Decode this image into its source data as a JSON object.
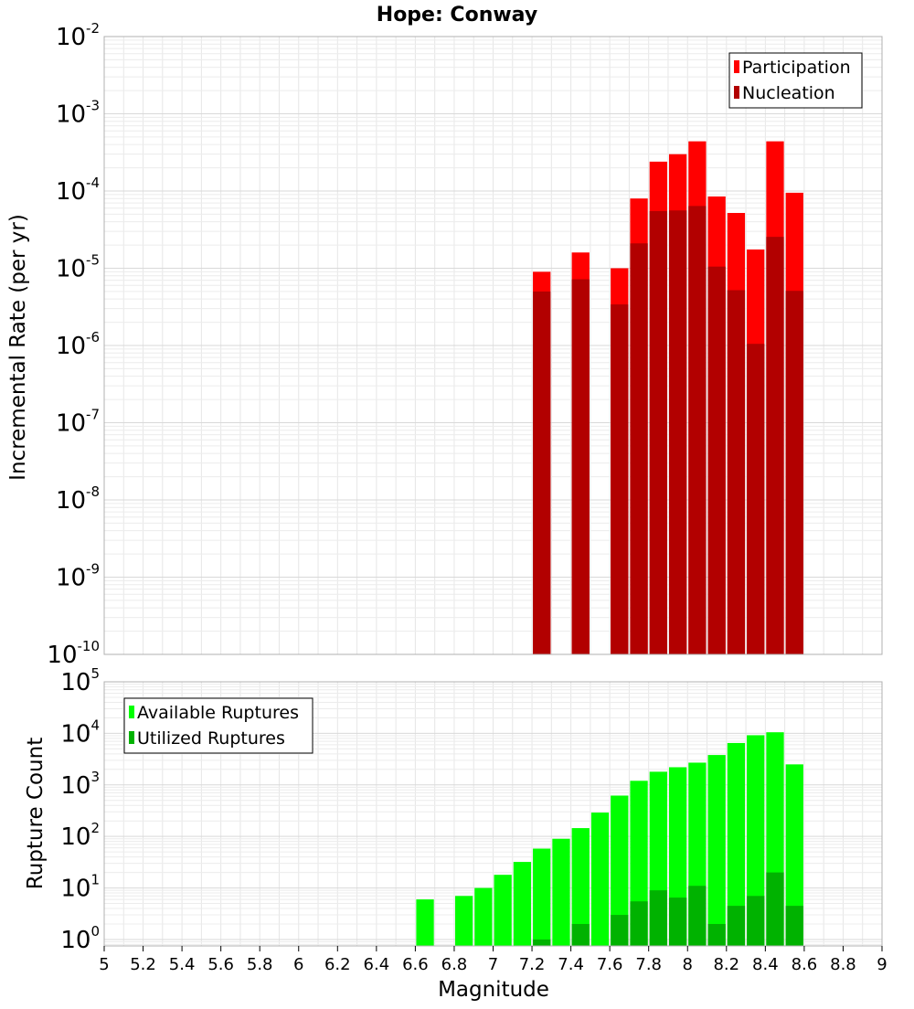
{
  "chart_data": [
    {
      "type": "bar",
      "title": "Hope: Conway",
      "xlabel": "",
      "ylabel": "Incremental Rate (per yr)",
      "yscale": "log",
      "xlim": [
        5,
        9
      ],
      "ylim": [
        1e-10,
        0.01
      ],
      "ytick_exponents": [
        "-10",
        "-9",
        "-8",
        "-7",
        "-6",
        "-5",
        "-4",
        "-3",
        "-2"
      ],
      "ytick_base": "10",
      "grid": true,
      "legend_position": "top-right",
      "bar_width": 0.1,
      "x": [
        7.25,
        7.45,
        7.65,
        7.75,
        7.85,
        7.95,
        8.05,
        8.15,
        8.25,
        8.35,
        8.45,
        8.55
      ],
      "series": [
        {
          "name": "Participation",
          "color": "#ff0000",
          "values": [
            9e-06,
            1.6e-05,
            1e-05,
            8e-05,
            0.00024,
            0.0003,
            0.00044,
            8.5e-05,
            5.2e-05,
            1.75e-05,
            0.00044,
            9.5e-05
          ]
        },
        {
          "name": "Nucleation",
          "color": "#b20000",
          "values": [
            5e-06,
            7.2e-06,
            3.4e-06,
            2.1e-05,
            5.5e-05,
            5.6e-05,
            6.4e-05,
            1.05e-05,
            5.2e-06,
            1.05e-06,
            2.55e-05,
            5.1e-06
          ]
        }
      ]
    },
    {
      "type": "bar",
      "title": "",
      "xlabel": "Magnitude",
      "ylabel": "Rupture Count",
      "yscale": "log",
      "xlim": [
        5,
        9
      ],
      "ylim": [
        0.75,
        100000
      ],
      "ytick_exponents": [
        "0",
        "1",
        "2",
        "3",
        "4",
        "5"
      ],
      "ytick_base": "10",
      "xticks": [
        "5",
        "5.2",
        "5.4",
        "5.6",
        "5.8",
        "6",
        "6.2",
        "6.4",
        "6.6",
        "6.8",
        "7",
        "7.2",
        "7.4",
        "7.6",
        "7.8",
        "8",
        "8.2",
        "8.4",
        "8.6",
        "8.8",
        "9"
      ],
      "grid": true,
      "legend_position": "top-left",
      "bar_width": 0.1,
      "x": [
        6.65,
        6.85,
        6.95,
        7.05,
        7.15,
        7.25,
        7.35,
        7.45,
        7.55,
        7.65,
        7.75,
        7.85,
        7.95,
        8.05,
        8.15,
        8.25,
        8.35,
        8.45,
        8.55
      ],
      "series": [
        {
          "name": "Available Ruptures",
          "color": "#00ff00",
          "values": [
            6,
            7,
            10,
            18,
            32,
            58,
            90,
            145,
            290,
            620,
            1200,
            1800,
            2200,
            2700,
            3800,
            6500,
            9200,
            10500,
            2500
          ]
        },
        {
          "name": "Utilized Ruptures",
          "color": "#00b200",
          "values": [
            0,
            0,
            0,
            0,
            0,
            1,
            0,
            2,
            0,
            3,
            5.5,
            9,
            6.5,
            11,
            2,
            4.5,
            7,
            20,
            4.5
          ]
        }
      ]
    }
  ]
}
